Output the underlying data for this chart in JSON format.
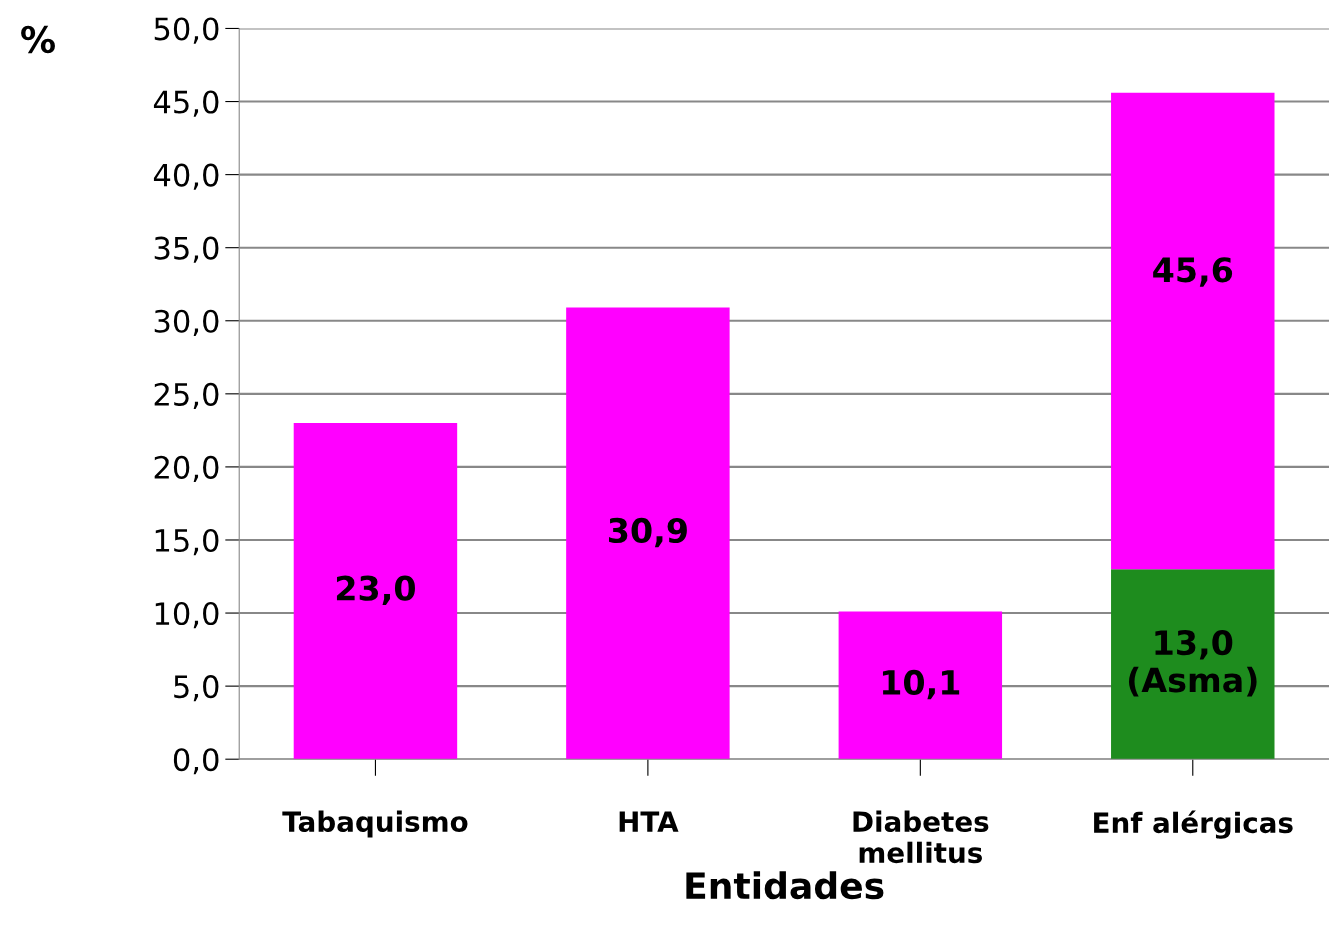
{
  "chart_data": {
    "type": "bar",
    "stacked": true,
    "xlabel": "Entidades",
    "ylabel": "%",
    "categories": [
      "Tabaquismo",
      "HTA",
      "Diabetes\nmellitus",
      "Enf alérgicas"
    ],
    "series": [
      {
        "color": "#1e8c1e",
        "values": [
          null,
          null,
          null,
          13.0
        ],
        "value_labels": [
          null,
          null,
          null,
          "13,0\n(Asma)"
        ]
      },
      {
        "color": "#ff00ff",
        "values": [
          23.0,
          30.9,
          10.1,
          32.6
        ],
        "value_labels": [
          "23,0",
          "30,9",
          "10,1",
          null
        ]
      }
    ],
    "totals": [
      null,
      null,
      null,
      "45,6"
    ],
    "ylim": [
      0,
      50
    ],
    "yticks": [
      {
        "value": 0,
        "label": "0,0"
      },
      {
        "value": 5,
        "label": "5,0"
      },
      {
        "value": 10,
        "label": "10,0"
      },
      {
        "value": 15,
        "label": "15,0"
      },
      {
        "value": 20,
        "label": "20,0"
      },
      {
        "value": 25,
        "label": "25,0"
      },
      {
        "value": 30,
        "label": "30,0"
      },
      {
        "value": 35,
        "label": "35,0"
      },
      {
        "value": 40,
        "label": "40,0"
      },
      {
        "value": 45,
        "label": "45,0"
      },
      {
        "value": 50,
        "label": "50,0"
      }
    ],
    "grid": "y",
    "legend": false
  }
}
